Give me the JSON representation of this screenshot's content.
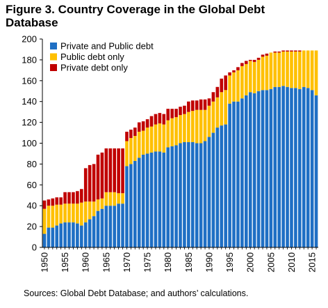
{
  "figure": {
    "title": "Figure 3. Country Coverage in the Global Debt Database",
    "source": "Sources: Global Debt Database; and authors’ calculations."
  },
  "chart_data": {
    "type": "bar",
    "stacked": true,
    "title": "Figure 3. Country Coverage in the Global Debt Database",
    "xlabel": "",
    "ylabel": "",
    "ylim": [
      0,
      200
    ],
    "yticks": [
      0,
      20,
      40,
      60,
      80,
      100,
      120,
      140,
      160,
      180,
      200
    ],
    "xtick_labels": [
      "1950",
      "1955",
      "1960",
      "1965",
      "1970",
      "1975",
      "1980",
      "1985",
      "1990",
      "1995",
      "2000",
      "2005",
      "2010",
      "2015"
    ],
    "grid": false,
    "legend_position": "top-left",
    "categories": [
      1950,
      1951,
      1952,
      1953,
      1954,
      1955,
      1956,
      1957,
      1958,
      1959,
      1960,
      1961,
      1962,
      1963,
      1964,
      1965,
      1966,
      1967,
      1968,
      1969,
      1970,
      1971,
      1972,
      1973,
      1974,
      1975,
      1976,
      1977,
      1978,
      1979,
      1980,
      1981,
      1982,
      1983,
      1984,
      1985,
      1986,
      1987,
      1988,
      1989,
      1990,
      1991,
      1992,
      1993,
      1994,
      1995,
      1996,
      1997,
      1998,
      1999,
      2000,
      2001,
      2002,
      2003,
      2004,
      2005,
      2006,
      2007,
      2008,
      2009,
      2010,
      2011,
      2012,
      2013,
      2014,
      2015,
      2016
    ],
    "series": [
      {
        "name": "Private and Public debt",
        "color": "#1f6fc4",
        "values": [
          13,
          19,
          19,
          21,
          23,
          24,
          24,
          24,
          23,
          21,
          24,
          27,
          30,
          35,
          37,
          40,
          40,
          40,
          42,
          42,
          78,
          80,
          83,
          86,
          89,
          90,
          91,
          92,
          92,
          91,
          96,
          97,
          98,
          100,
          101,
          101,
          101,
          100,
          100,
          102,
          106,
          110,
          115,
          117,
          118,
          138,
          140,
          140,
          143,
          146,
          149,
          148,
          150,
          151,
          151,
          152,
          154,
          154,
          155,
          154,
          153,
          153,
          152,
          154,
          153,
          151,
          146
        ]
      },
      {
        "name": "Public debt only",
        "color": "#ffc000",
        "values": [
          24,
          21,
          21,
          20,
          18,
          18,
          18,
          18,
          19,
          22,
          20,
          17,
          14,
          11,
          10,
          13,
          13,
          13,
          10,
          10,
          24,
          25,
          24,
          25,
          23,
          25,
          25,
          26,
          27,
          27,
          26,
          27,
          27,
          27,
          27,
          29,
          30,
          32,
          32,
          30,
          30,
          30,
          29,
          32,
          33,
          27,
          28,
          30,
          31,
          30,
          30,
          30,
          30,
          32,
          33,
          35,
          33,
          33,
          33,
          34,
          35,
          35,
          36,
          35,
          36,
          38,
          43
        ]
      },
      {
        "name": "Private debt only",
        "color": "#c00000",
        "values": [
          8,
          6,
          7,
          7,
          7,
          11,
          11,
          11,
          12,
          13,
          32,
          35,
          36,
          43,
          44,
          42,
          42,
          42,
          43,
          43,
          9,
          8,
          8,
          9,
          9,
          8,
          10,
          10,
          10,
          10,
          11,
          9,
          8,
          8,
          8,
          10,
          10,
          9,
          10,
          10,
          7,
          9,
          10,
          13,
          14,
          3,
          2,
          3,
          3,
          3,
          1,
          2,
          2,
          2,
          2,
          0,
          1,
          1,
          1,
          1,
          1,
          1,
          1,
          0,
          0,
          0,
          0
        ]
      }
    ]
  }
}
